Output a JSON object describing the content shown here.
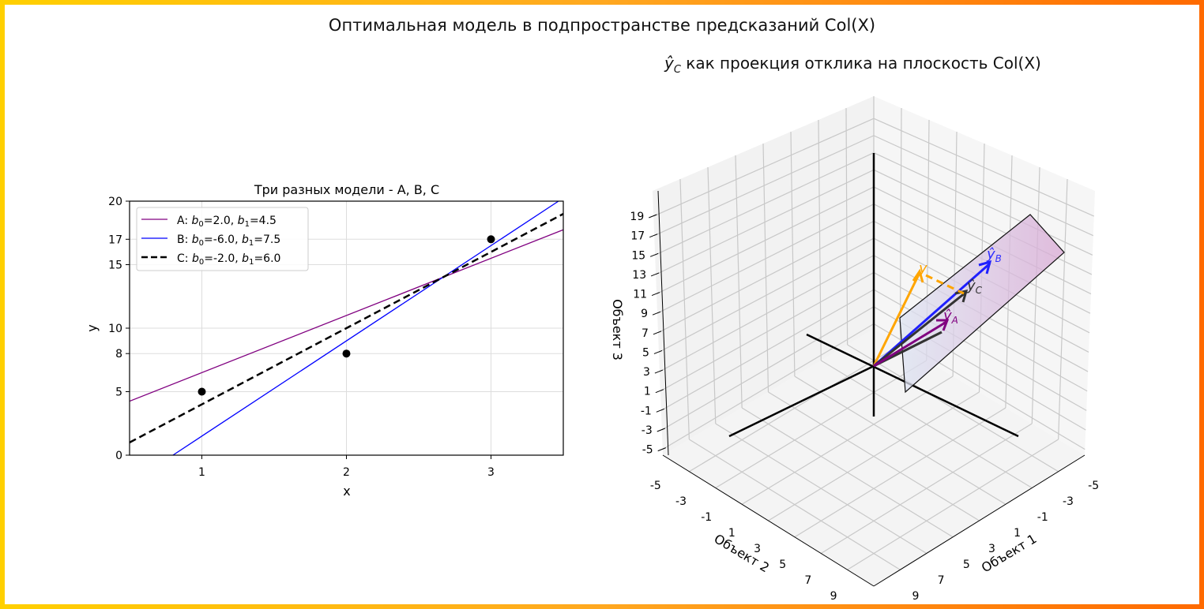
{
  "figure": {
    "suptitle": "Оптимальная модель в подпространстве предсказаний Col(X)",
    "border_colors": [
      "#ffd000",
      "#ff6a00"
    ]
  },
  "chart_data": [
    {
      "type": "line",
      "title": "Три разных модели - A, B, C",
      "xlabel": "x",
      "ylabel": "y",
      "xlim": [
        0.5,
        3.5
      ],
      "ylim": [
        0,
        20
      ],
      "xticks": [
        "1",
        "2",
        "3"
      ],
      "yticks": [
        "0",
        "5",
        "8",
        "10",
        "15",
        "17",
        "20"
      ],
      "grid": true,
      "legend_position": "upper left",
      "points": {
        "x": [
          1,
          2,
          3
        ],
        "y": [
          5,
          8,
          17
        ],
        "color": "#000000"
      },
      "series": [
        {
          "name": "A: b0=2.0, b1=4.5",
          "b0": 2.0,
          "b1": 4.5,
          "color": "#800080",
          "style": "solid"
        },
        {
          "name": "B: b0=-6.0, b1=7.5",
          "b0": -6.0,
          "b1": 7.5,
          "color": "#0000ff",
          "style": "solid"
        },
        {
          "name": "C: b0=-2.0, b1=6.0",
          "b0": -2.0,
          "b1": 6.0,
          "color": "#000000",
          "style": "dashed"
        }
      ],
      "legend": [
        {
          "prefix": "A: ",
          "b0": "2.0",
          "b1": "4.5"
        },
        {
          "prefix": "B: ",
          "b0": "-6.0",
          "b1": "7.5"
        },
        {
          "prefix": "C: ",
          "b0": "-2.0",
          "b1": "6.0"
        }
      ]
    },
    {
      "type": "3d-vector",
      "title": "ŷC как проекция отклика на плоскость Col(X)",
      "xlabel": "Объект 1",
      "ylabel": "Объект 2",
      "zlabel": "Объект 3",
      "xticks": [
        "-5",
        "-3",
        "-1",
        "1",
        "3",
        "5",
        "7",
        "9"
      ],
      "yticks": [
        "-5",
        "-3",
        "-1",
        "1",
        "3",
        "5",
        "7",
        "9"
      ],
      "zticks": [
        "-5",
        "-3",
        "-1",
        "1",
        "3",
        "5",
        "7",
        "9",
        "11",
        "13",
        "15",
        "17",
        "19"
      ],
      "vectors": [
        {
          "name": "y",
          "value": [
            5,
            8,
            17
          ],
          "color": "#ffa500"
        },
        {
          "name": "ŷA",
          "value": [
            6.5,
            11,
            15.5
          ],
          "color": "#800080"
        },
        {
          "name": "ŷB",
          "value": [
            1.5,
            9,
            16.5
          ],
          "color": "#0000ff"
        },
        {
          "name": "ŷC",
          "value": [
            4,
            10,
            16
          ],
          "color": "#333333"
        }
      ],
      "residual": {
        "from": "ŷC",
        "to": "y",
        "color": "#ffa500",
        "style": "dashed"
      },
      "plane": "Col(X)",
      "labels": {
        "y": "y",
        "yA": "ŷ",
        "yA_sub": "A",
        "yB": "ŷ",
        "yB_sub": "B",
        "yC": "ŷ",
        "yC_sub": "C"
      }
    }
  ],
  "subtitle3d": {
    "pre": "ŷ",
    "sub": "C",
    "rest": " как проекция отклика на плоскость Col(X)"
  }
}
